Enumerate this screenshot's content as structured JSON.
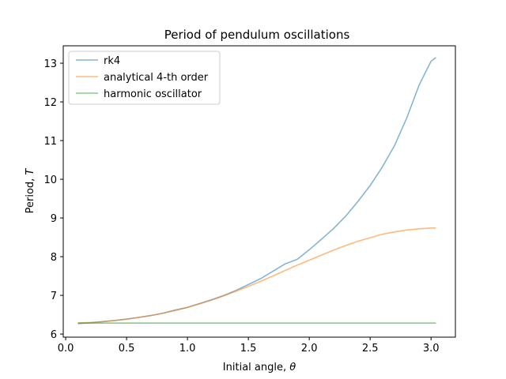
{
  "chart_data": {
    "type": "line",
    "title": "Period of pendulum oscillations",
    "xlabel": "Initial angle, ",
    "xlabel_symbol": "θ",
    "ylabel": "Period, ",
    "ylabel_symbol": "T",
    "xlim": [
      -0.02,
      3.2
    ],
    "ylim": [
      5.92,
      13.45
    ],
    "xticks": [
      0.0,
      0.5,
      1.0,
      1.5,
      2.0,
      2.5,
      3.0
    ],
    "xtick_labels": [
      "0.0",
      "0.5",
      "1.0",
      "1.5",
      "2.0",
      "2.5",
      "3.0"
    ],
    "yticks": [
      6,
      7,
      8,
      9,
      10,
      11,
      12,
      13
    ],
    "ytick_labels": [
      "6",
      "7",
      "8",
      "9",
      "10",
      "11",
      "12",
      "13"
    ],
    "grid": false,
    "legend_position": "top-left",
    "series": [
      {
        "name": "rk4",
        "color": "#1f77b4",
        "x": [
          0.1,
          0.2,
          0.3,
          0.4,
          0.5,
          0.6,
          0.7,
          0.8,
          0.9,
          1.0,
          1.1,
          1.2,
          1.3,
          1.4,
          1.5,
          1.6,
          1.7,
          1.8,
          1.9,
          2.0,
          2.1,
          2.2,
          2.3,
          2.4,
          2.5,
          2.6,
          2.7,
          2.8,
          2.85,
          2.9,
          2.95,
          3.0,
          3.04
        ],
        "y": [
          6.27,
          6.29,
          6.32,
          6.35,
          6.39,
          6.43,
          6.48,
          6.54,
          6.62,
          6.69,
          6.79,
          6.89,
          7.0,
          7.13,
          7.28,
          7.43,
          7.62,
          7.81,
          7.93,
          8.18,
          8.45,
          8.73,
          9.05,
          9.43,
          9.84,
          10.32,
          10.87,
          11.58,
          12.0,
          12.42,
          12.74,
          13.05,
          13.15
        ]
      },
      {
        "name": "analytical 4-th order",
        "color": "#ff7f0e",
        "x": [
          0.1,
          0.2,
          0.3,
          0.4,
          0.5,
          0.6,
          0.7,
          0.8,
          0.9,
          1.0,
          1.1,
          1.2,
          1.3,
          1.4,
          1.5,
          1.6,
          1.7,
          1.8,
          1.9,
          2.0,
          2.1,
          2.2,
          2.3,
          2.4,
          2.5,
          2.6,
          2.7,
          2.8,
          2.9,
          3.0,
          3.04
        ],
        "y": [
          6.29,
          6.3,
          6.32,
          6.35,
          6.38,
          6.43,
          6.48,
          6.54,
          6.61,
          6.69,
          6.78,
          6.88,
          6.99,
          7.11,
          7.23,
          7.36,
          7.5,
          7.64,
          7.78,
          7.91,
          8.04,
          8.17,
          8.29,
          8.4,
          8.49,
          8.58,
          8.64,
          8.69,
          8.72,
          8.74,
          8.74
        ]
      },
      {
        "name": "harmonic oscillator",
        "color": "#2ca02c",
        "x": [
          0.1,
          3.04
        ],
        "y": [
          6.283,
          6.283
        ]
      }
    ]
  }
}
